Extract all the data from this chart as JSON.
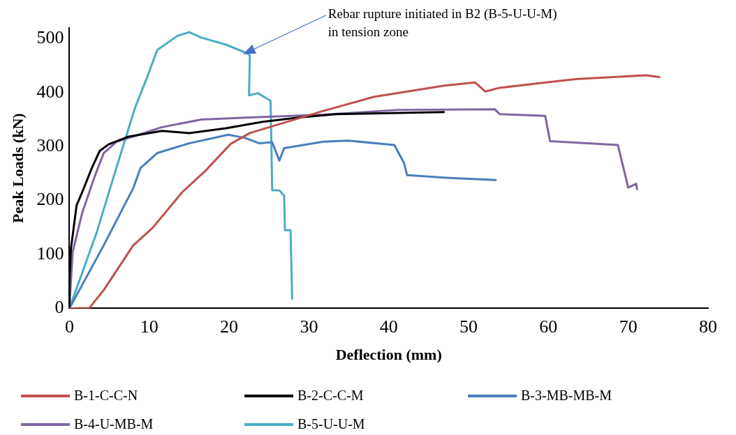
{
  "chart_data": {
    "type": "line",
    "xlabel": "Deflection (mm)",
    "ylabel": "Peak Loads (kN)",
    "xlim": [
      0,
      80
    ],
    "xticks": [
      0,
      10,
      20,
      30,
      40,
      50,
      60,
      70,
      80
    ],
    "ylim": [
      0,
      520
    ],
    "yticks": [
      0,
      100,
      200,
      300,
      400,
      500
    ],
    "grid": false,
    "legend": "bottom",
    "marker": "none",
    "line_style": "solid",
    "annotations": [
      "Rebar rupture initiated in B2 (B-5-U-U-M)\nin tension zone"
    ],
    "series": [
      {
        "name": "B-1-C-C-N",
        "color": "#c0504d",
        "x": [
          0,
          2.5,
          4.3,
          8,
          10.4,
          14.1,
          17.1,
          20.2,
          22.6,
          25.7,
          31.8,
          38.1,
          47,
          50.8,
          52.1,
          53.9,
          63.4,
          72.2,
          73.9
        ],
        "values": [
          0,
          1,
          34,
          117,
          149,
          215,
          256,
          305,
          325,
          339,
          366,
          392,
          413,
          419,
          402,
          409,
          425,
          432,
          429
        ]
      },
      {
        "name": "B-2-C-C-M",
        "color": "#000000",
        "x": [
          0,
          0,
          0.2,
          0.9,
          1.7,
          2.8,
          3.8,
          4.9,
          7.3,
          11.6,
          15,
          19.6,
          24.2,
          28.8,
          33.4,
          46.9
        ],
        "values": [
          0,
          52,
          112,
          191,
          219,
          260,
          292,
          304,
          318,
          329,
          325,
          334,
          346,
          354,
          360,
          364
        ]
      },
      {
        "name": "B-3-MB-MB-M",
        "color": "#4a7ebb",
        "x": [
          0,
          4.3,
          8,
          8.9,
          11,
          15,
          19.9,
          22,
          23.8,
          25.4,
          26.3,
          26.9,
          31.8,
          34.9,
          40.7,
          41.9,
          42.3,
          47.6,
          53.4
        ],
        "values": [
          0,
          117,
          223,
          260,
          288,
          306,
          322,
          316,
          306,
          308,
          274,
          297,
          309,
          311,
          303,
          270,
          247,
          242,
          238
        ]
      },
      {
        "name": "B-4-U-MB-M",
        "color": "#8064a2",
        "x": [
          0,
          0.4,
          1.6,
          3.1,
          4.3,
          5.9,
          8.9,
          11.6,
          16.5,
          22.6,
          31.8,
          41.2,
          53.3,
          53.9,
          59.6,
          60.2,
          68.7,
          70,
          71,
          71.1
        ],
        "values": [
          0,
          104,
          177,
          242,
          288,
          309,
          323,
          336,
          350,
          354,
          359,
          368,
          369,
          360,
          357,
          310,
          303,
          224,
          231,
          221
        ]
      },
      {
        "name": "B-5-U-U-M",
        "color": "#4bacc6",
        "x": [
          0,
          3.4,
          5.5,
          8.2,
          9.8,
          11,
          13.5,
          15,
          16.5,
          19.6,
          22.4,
          22.6,
          22.5,
          23.6,
          25.2,
          25.4,
          26.3,
          26.9,
          27,
          27.7,
          27.9
        ],
        "values": [
          0,
          140,
          242,
          371,
          431,
          479,
          505,
          512,
          502,
          489,
          472,
          468,
          395,
          399,
          385,
          219,
          219,
          209,
          145,
          145,
          18
        ]
      }
    ]
  }
}
